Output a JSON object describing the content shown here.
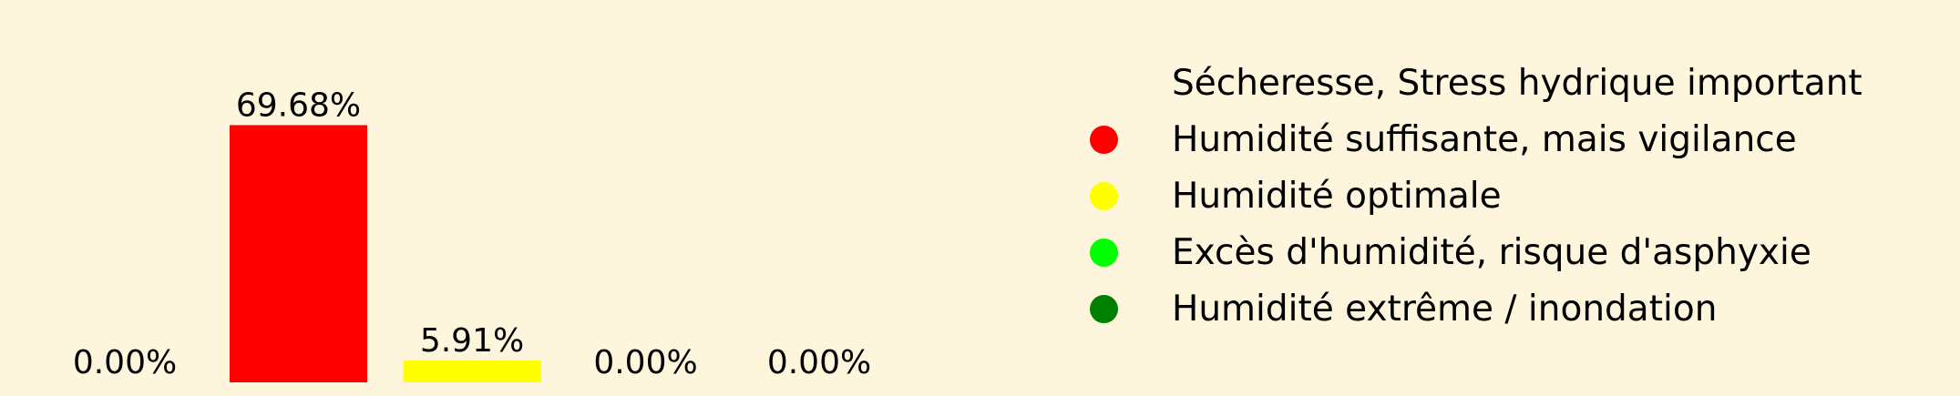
{
  "chart_data": {
    "type": "bar",
    "categories": [
      "Sécheresse, Stress hydrique important",
      "Humidité suffisante, mais vigilance",
      "Humidité optimale",
      "Excès d'humidité, risque d'asphyxie",
      "Humidité extrême / inondation"
    ],
    "values": [
      0.0,
      69.68,
      5.91,
      0.0,
      0.0
    ],
    "value_labels": [
      "0.00%",
      "69.68%",
      "5.91%",
      "0.00%",
      "0.00%"
    ],
    "colors": [
      "#fdf5dc",
      "#ff0000",
      "#ffff00",
      "#00ff00",
      "#008000"
    ],
    "title": "",
    "xlabel": "",
    "ylabel": "",
    "ylim": [
      0,
      100
    ],
    "grid": false,
    "legend_position": "right"
  },
  "background_color": "#fdf5dc"
}
